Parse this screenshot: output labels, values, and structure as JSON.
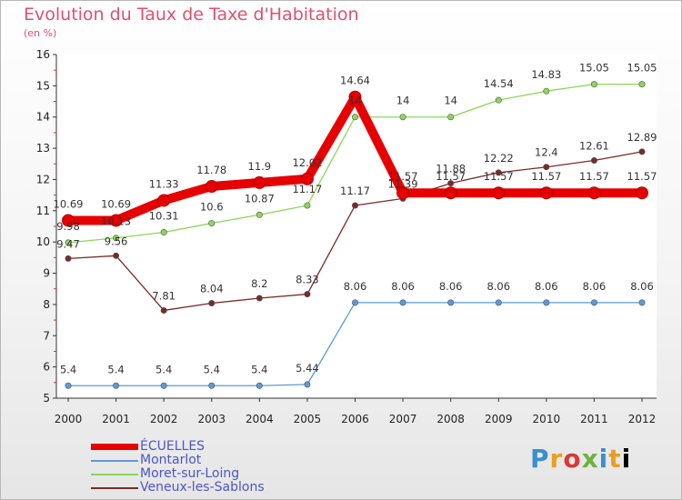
{
  "chart_data": {
    "type": "line",
    "title": "Evolution du Taux de Taxe d'Habitation",
    "subtitle": "(en %)",
    "xlabel": "",
    "ylabel": "(en %)",
    "ylim": [
      5,
      16
    ],
    "yticks": [
      "5",
      "6",
      "7",
      "8",
      "9",
      "10",
      "11",
      "12",
      "13",
      "14",
      "15",
      "16"
    ],
    "x": [
      "2000",
      "2001",
      "2002",
      "2003",
      "2004",
      "2005",
      "2006",
      "2007",
      "2008",
      "2009",
      "2010",
      "2011",
      "2012"
    ],
    "series": [
      {
        "name": "ÉCUELLES",
        "color": "#e60000",
        "values": [
          10.69,
          10.69,
          11.33,
          11.78,
          11.9,
          12.02,
          14.64,
          11.57,
          11.57,
          11.57,
          11.57,
          11.57,
          11.57
        ],
        "labels": [
          "10.69",
          "10.69",
          "11.33",
          "11.78",
          "11.9",
          "12.02",
          "14.64",
          "11.57",
          "11.57",
          "11.57",
          "11.57",
          "11.57",
          "11.57"
        ]
      },
      {
        "name": "Montarlot",
        "color": "#5b9bd5",
        "values": [
          5.4,
          5.4,
          5.4,
          5.4,
          5.4,
          5.44,
          8.06,
          8.06,
          8.06,
          8.06,
          8.06,
          8.06,
          8.06
        ],
        "labels": [
          "5.4",
          "5.4",
          "5.4",
          "5.4",
          "5.4",
          "5.44",
          "8.06",
          "8.06",
          "8.06",
          "8.06",
          "8.06",
          "8.06",
          "8.06"
        ]
      },
      {
        "name": "Moret-sur-Loing",
        "color": "#8cd65a",
        "values": [
          9.98,
          10.13,
          10.31,
          10.6,
          10.87,
          11.17,
          14,
          14,
          14,
          14.54,
          14.83,
          15.05,
          15.05
        ],
        "labels": [
          "9.98",
          "10.13",
          "10.31",
          "10.6",
          "10.87",
          "11.17",
          "14",
          "14",
          "14",
          "14.54",
          "14.83",
          "15.05",
          "15.05"
        ]
      },
      {
        "name": "Veneux-les-Sablons",
        "color": "#7a2a2a",
        "values": [
          9.47,
          9.56,
          7.81,
          8.04,
          8.2,
          8.33,
          11.17,
          11.39,
          11.88,
          12.22,
          12.4,
          12.61,
          12.89
        ],
        "labels": [
          "9.47",
          "9.56",
          "7.81",
          "8.04",
          "8.2",
          "8.33",
          "11.17",
          "11.39",
          "11.88",
          "12.22",
          "12.4",
          "12.61",
          "12.89"
        ]
      }
    ],
    "legend_position": "bottom-left"
  },
  "branding": {
    "logo_letters": [
      "P",
      "r",
      "o",
      "x",
      "i",
      "t",
      "i"
    ]
  }
}
